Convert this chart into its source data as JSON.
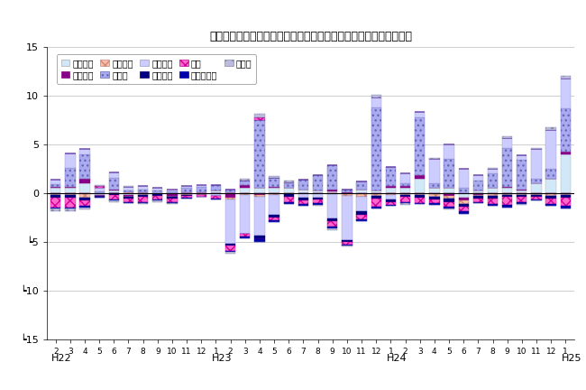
{
  "title": "三重県鉱工業生産の業種別前月比寄与度の推移（季節調整済指数）",
  "ylim": [
    -15,
    15
  ],
  "yticks": [
    -15,
    -10,
    -5,
    0,
    5,
    10,
    15
  ],
  "ytick_labels": [
    "┕15",
    "┕10",
    "┕5",
    "0",
    "5",
    "10",
    "15"
  ],
  "x_labels": [
    "2",
    "3",
    "4",
    "5",
    "6",
    "7",
    "8",
    "9",
    "10",
    "11",
    "12",
    "1",
    "2",
    "3",
    "4",
    "5",
    "6",
    "7",
    "8",
    "9",
    "10",
    "11",
    "12",
    "1",
    "2",
    "3",
    "4",
    "5",
    "6",
    "7",
    "8",
    "9",
    "10",
    "11",
    "12",
    "1"
  ],
  "year_label_positions": [
    [
      0,
      "H22"
    ],
    [
      11,
      "H23"
    ],
    [
      23,
      "H24"
    ],
    [
      35,
      "H25"
    ]
  ],
  "series": [
    {
      "name": "一般機械",
      "fcolor": "#d0e8f8",
      "ecolor": "#aaaaaa",
      "hatch": ""
    },
    {
      "name": "電気機械",
      "fcolor": "#880088",
      "ecolor": "#880088",
      "hatch": ""
    },
    {
      "name": "情報通信",
      "fcolor": "#ffbbaa",
      "ecolor": "#cc8877",
      "hatch": "xxx"
    },
    {
      "name": "電デバ",
      "fcolor": "#aaaaee",
      "ecolor": "#6666bb",
      "hatch": "..."
    },
    {
      "name": "輸送機械",
      "fcolor": "#ccccff",
      "ecolor": "#9999cc",
      "hatch": ""
    },
    {
      "name": "窯業土石",
      "fcolor": "#000080",
      "ecolor": "#000080",
      "hatch": ""
    },
    {
      "name": "化学",
      "fcolor": "#ff66cc",
      "ecolor": "#cc0099",
      "hatch": "xxx"
    },
    {
      "name": "その他工業",
      "fcolor": "#0000aa",
      "ecolor": "#0000aa",
      "hatch": ""
    },
    {
      "name": "その他",
      "fcolor": "#bbbbdd",
      "ecolor": "#8888aa",
      "hatch": ".."
    }
  ],
  "data": {
    "一般機械": [
      0.5,
      0.5,
      1.0,
      -0.2,
      0.3,
      -0.2,
      0.1,
      -0.1,
      -0.1,
      0.1,
      0.1,
      0.3,
      0.1,
      0.5,
      0.5,
      0.5,
      0.5,
      0.4,
      0.3,
      0.2,
      -0.1,
      0.4,
      0.3,
      0.5,
      0.5,
      1.5,
      0.5,
      0.5,
      -0.5,
      0.3,
      0.5,
      0.5,
      0.3,
      1.0,
      1.5,
      4.0
    ],
    "電気機械": [
      0.1,
      0.1,
      0.5,
      -0.1,
      0.1,
      -0.2,
      -0.1,
      0.0,
      -0.3,
      -0.1,
      -0.1,
      0.0,
      -0.5,
      0.3,
      -0.2,
      0.1,
      -0.1,
      0.0,
      0.0,
      0.2,
      0.1,
      -0.1,
      -0.1,
      0.2,
      0.2,
      0.3,
      -0.1,
      -0.3,
      -0.3,
      -0.2,
      -0.1,
      0.1,
      0.1,
      0.0,
      -0.1,
      0.2
    ],
    "情報通信": [
      -0.2,
      -0.2,
      -0.5,
      0.0,
      0.0,
      0.1,
      -0.1,
      0.0,
      0.0,
      -0.1,
      -0.1,
      0.0,
      -0.2,
      -0.2,
      -0.2,
      -0.2,
      0.0,
      0.0,
      0.0,
      -0.1,
      -0.2,
      -0.3,
      -0.2,
      -0.2,
      -0.2,
      -0.2,
      -0.3,
      -0.3,
      -0.3,
      -0.1,
      -0.2,
      -0.2,
      -0.2,
      -0.2,
      -0.2,
      -0.2
    ],
    "電デバ": [
      0.3,
      2.0,
      2.5,
      0.2,
      1.2,
      0.2,
      0.3,
      0.3,
      0.2,
      0.4,
      0.5,
      0.5,
      0.3,
      0.5,
      7.0,
      1.0,
      0.5,
      1.0,
      1.5,
      2.5,
      0.3,
      0.8,
      8.5,
      2.0,
      0.3,
      6.0,
      0.5,
      3.0,
      0.5,
      1.0,
      1.5,
      4.0,
      3.0,
      0.5,
      1.0,
      4.5
    ],
    "輸送機械": [
      0.5,
      1.5,
      0.5,
      0.3,
      0.5,
      0.3,
      0.3,
      0.2,
      0.2,
      0.2,
      0.2,
      -0.3,
      -4.5,
      -4.0,
      -4.0,
      -2.0,
      0.1,
      -0.5,
      -0.5,
      -2.5,
      -4.5,
      -1.5,
      1.0,
      -0.5,
      1.0,
      0.5,
      2.5,
      1.5,
      2.0,
      0.5,
      0.5,
      1.0,
      0.5,
      3.0,
      4.0,
      3.0
    ],
    "窯業土石": [
      -0.3,
      -0.3,
      -0.3,
      -0.1,
      -0.2,
      -0.2,
      -0.2,
      -0.2,
      -0.2,
      -0.1,
      0.0,
      0.0,
      -0.2,
      0.0,
      -0.3,
      -0.3,
      -0.3,
      -0.3,
      -0.2,
      -0.3,
      -0.2,
      -0.3,
      -0.3,
      -0.2,
      -0.2,
      -0.3,
      -0.3,
      -0.3,
      -0.3,
      -0.3,
      -0.3,
      -0.2,
      -0.2,
      -0.2,
      -0.3,
      -0.3
    ],
    "化学": [
      -1.0,
      -1.0,
      -0.5,
      0.2,
      -0.5,
      -0.3,
      -0.5,
      -0.4,
      -0.3,
      -0.2,
      -0.2,
      -0.3,
      -0.5,
      -0.3,
      0.3,
      -0.3,
      -0.5,
      -0.3,
      -0.3,
      -0.5,
      -0.3,
      -0.5,
      -0.8,
      -0.3,
      -0.5,
      -0.5,
      -0.3,
      -0.5,
      -0.5,
      -0.3,
      -0.5,
      -0.8,
      -0.5,
      -0.3,
      -0.5,
      -0.8
    ],
    "その他工業": [
      -0.1,
      -0.1,
      -0.2,
      -0.1,
      -0.1,
      -0.1,
      -0.1,
      -0.1,
      -0.1,
      -0.1,
      0.0,
      -0.1,
      -0.1,
      -0.1,
      -0.3,
      -0.2,
      -0.2,
      -0.2,
      -0.2,
      -0.2,
      -0.1,
      -0.2,
      -0.2,
      -0.1,
      -0.1,
      -0.1,
      -0.2,
      -0.2,
      -0.2,
      -0.1,
      -0.2,
      -0.3,
      -0.2,
      -0.1,
      -0.2,
      -0.3
    ],
    "その他": [
      -0.3,
      -0.3,
      -0.2,
      0.1,
      -0.1,
      0.1,
      -0.1,
      -0.1,
      -0.1,
      0.0,
      0.0,
      0.0,
      -0.2,
      0.2,
      0.3,
      0.1,
      0.2,
      0.0,
      -0.1,
      -0.2,
      -0.1,
      0.0,
      0.3,
      0.0,
      -0.2,
      0.0,
      0.1,
      -0.1,
      0.0,
      0.0,
      0.1,
      0.2,
      -0.1,
      0.1,
      0.2,
      0.3
    ]
  }
}
